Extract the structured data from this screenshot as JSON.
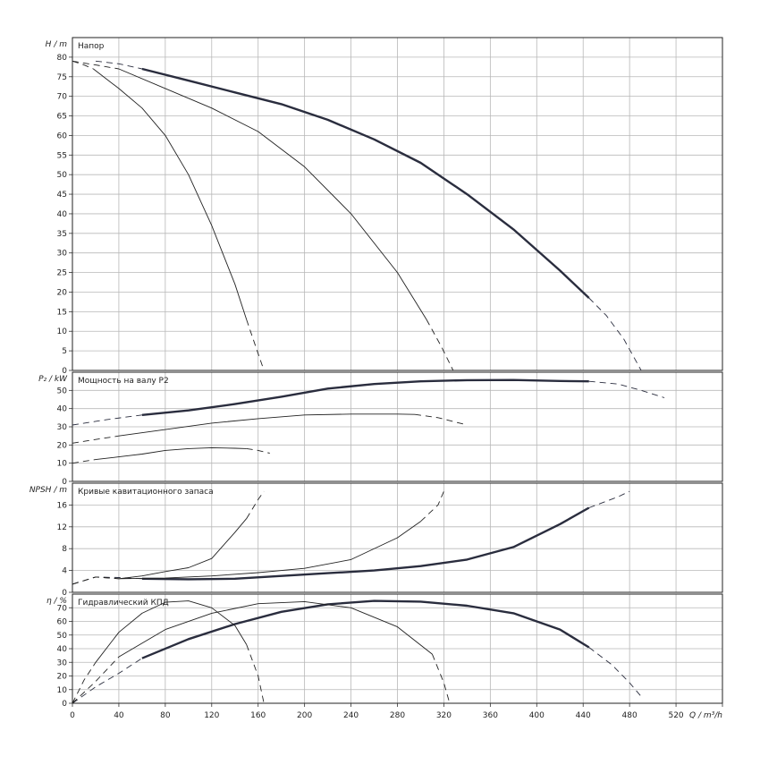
{
  "chart_data": [
    {
      "type": "line",
      "id": "head",
      "title": "Напор",
      "ylabel_symbol": "H",
      "ylabel_unit": "m",
      "ylim": [
        0,
        85
      ],
      "yticks": [
        0,
        5,
        10,
        15,
        20,
        25,
        30,
        35,
        40,
        45,
        50,
        55,
        60,
        65,
        70,
        75,
        80
      ],
      "xlim": [
        0,
        560
      ],
      "grid": true,
      "series": [
        {
          "weight": "thick",
          "solid": [
            [
              60,
              77
            ],
            [
              100,
              74
            ],
            [
              140,
              71
            ],
            [
              180,
              68
            ],
            [
              220,
              64
            ],
            [
              260,
              59
            ],
            [
              300,
              53
            ],
            [
              340,
              45
            ],
            [
              380,
              36
            ],
            [
              420,
              25.5
            ],
            [
              445,
              18.5
            ]
          ],
          "dashed_start": [
            [
              20,
              79
            ],
            [
              40,
              78.3
            ],
            [
              60,
              77
            ]
          ],
          "dashed_end": [
            [
              445,
              18.5
            ],
            [
              460,
              14
            ],
            [
              475,
              8
            ],
            [
              490,
              0
            ]
          ]
        },
        {
          "weight": "thin",
          "solid": [
            [
              40,
              77
            ],
            [
              80,
              72
            ],
            [
              120,
              67
            ],
            [
              160,
              61
            ],
            [
              200,
              52
            ],
            [
              240,
              40
            ],
            [
              280,
              25
            ],
            [
              305,
              13
            ]
          ],
          "dashed_start": [
            [
              0,
              79
            ],
            [
              20,
              78
            ],
            [
              40,
              77
            ]
          ],
          "dashed_end": [
            [
              305,
              13
            ],
            [
              318,
              6
            ],
            [
              328,
              0
            ]
          ]
        },
        {
          "weight": "thin",
          "solid": [
            [
              18,
              77
            ],
            [
              40,
              72
            ],
            [
              60,
              67
            ],
            [
              80,
              60
            ],
            [
              100,
              50
            ],
            [
              120,
              37
            ],
            [
              140,
              22
            ],
            [
              150,
              13
            ]
          ],
          "dashed_start": [
            [
              0,
              79
            ],
            [
              10,
              78
            ],
            [
              18,
              77
            ]
          ],
          "dashed_end": [
            [
              150,
              13
            ],
            [
              158,
              6
            ],
            [
              165,
              0
            ]
          ]
        }
      ]
    },
    {
      "type": "line",
      "id": "power",
      "title": "Мощность на валу P2",
      "ylabel_symbol": "P₂",
      "ylabel_unit": "kW",
      "ylim": [
        0,
        60
      ],
      "yticks": [
        0,
        10,
        20,
        30,
        40,
        50
      ],
      "xlim": [
        0,
        560
      ],
      "grid": true,
      "series": [
        {
          "weight": "thick",
          "solid": [
            [
              60,
              36.5
            ],
            [
              100,
              39
            ],
            [
              140,
              42.5
            ],
            [
              180,
              46.5
            ],
            [
              220,
              51
            ],
            [
              260,
              53.5
            ],
            [
              300,
              55
            ],
            [
              340,
              55.6
            ],
            [
              380,
              55.7
            ],
            [
              420,
              55.2
            ],
            [
              445,
              55
            ]
          ],
          "dashed_start": [
            [
              0,
              31
            ],
            [
              30,
              34
            ],
            [
              60,
              36.5
            ]
          ],
          "dashed_end": [
            [
              445,
              55
            ],
            [
              470,
              53.5
            ],
            [
              490,
              50
            ],
            [
              510,
              46
            ]
          ]
        },
        {
          "weight": "thin",
          "solid": [
            [
              40,
              25
            ],
            [
              80,
              28.5
            ],
            [
              120,
              32
            ],
            [
              160,
              34.5
            ],
            [
              200,
              36.5
            ],
            [
              240,
              37
            ],
            [
              280,
              37
            ],
            [
              295,
              36.8
            ]
          ],
          "dashed_start": [
            [
              0,
              21
            ],
            [
              20,
              23
            ],
            [
              40,
              25
            ]
          ],
          "dashed_end": [
            [
              295,
              36.8
            ],
            [
              315,
              35
            ],
            [
              340,
              31
            ]
          ]
        },
        {
          "weight": "thin",
          "solid": [
            [
              20,
              12
            ],
            [
              40,
              13.5
            ],
            [
              60,
              15
            ],
            [
              80,
              17
            ],
            [
              100,
              18
            ],
            [
              120,
              18.5
            ],
            [
              140,
              18.2
            ],
            [
              150,
              18
            ]
          ],
          "dashed_start": [
            [
              0,
              10
            ],
            [
              10,
              11
            ],
            [
              20,
              12
            ]
          ],
          "dashed_end": [
            [
              150,
              18
            ],
            [
              160,
              17
            ],
            [
              170,
              15.5
            ]
          ]
        }
      ]
    },
    {
      "type": "line",
      "id": "npsh",
      "title": "Кривые кавитационного запаса",
      "ylabel_symbol": "NPSH",
      "ylabel_unit": "m",
      "ylim": [
        0,
        20
      ],
      "yticks": [
        0,
        4,
        8,
        12,
        16
      ],
      "xlim": [
        0,
        560
      ],
      "grid": true,
      "series": [
        {
          "weight": "thick",
          "solid": [
            [
              60,
              2.5
            ],
            [
              100,
              2.4
            ],
            [
              140,
              2.5
            ],
            [
              180,
              3
            ],
            [
              220,
              3.5
            ],
            [
              260,
              4
            ],
            [
              300,
              4.8
            ],
            [
              340,
              6
            ],
            [
              380,
              8.3
            ],
            [
              420,
              12.5
            ],
            [
              445,
              15.5
            ]
          ],
          "dashed_start": [
            [
              0,
              1.5
            ],
            [
              20,
              2.8
            ],
            [
              40,
              2.7
            ],
            [
              60,
              2.5
            ]
          ],
          "dashed_end": [
            [
              445,
              15.5
            ],
            [
              470,
              17.5
            ],
            [
              480,
              18.5
            ]
          ]
        },
        {
          "weight": "thin",
          "solid": [
            [
              40,
              2.5
            ],
            [
              80,
              2.6
            ],
            [
              120,
              3
            ],
            [
              160,
              3.6
            ],
            [
              200,
              4.4
            ],
            [
              240,
              6
            ],
            [
              280,
              10
            ],
            [
              300,
              13
            ]
          ],
          "dashed_start": [
            [
              0,
              1.5
            ],
            [
              20,
              2.8
            ],
            [
              40,
              2.5
            ]
          ],
          "dashed_end": [
            [
              300,
              13
            ],
            [
              315,
              16
            ],
            [
              320,
              18.5
            ]
          ]
        },
        {
          "weight": "thin",
          "solid": [
            [
              40,
              2.5
            ],
            [
              60,
              3
            ],
            [
              80,
              3.8
            ],
            [
              100,
              4.5
            ],
            [
              120,
              6.2
            ],
            [
              140,
              11
            ],
            [
              150,
              13.5
            ]
          ],
          "dashed_start": [
            [
              0,
              1.5
            ],
            [
              20,
              2.8
            ],
            [
              40,
              2.5
            ]
          ],
          "dashed_end": [
            [
              150,
              13.5
            ],
            [
              160,
              17
            ],
            [
              165,
              18.5
            ]
          ]
        }
      ]
    },
    {
      "type": "line",
      "id": "efficiency",
      "title": "Гидравлический КПД",
      "ylabel_symbol": "η",
      "ylabel_unit": "%",
      "ylim": [
        0,
        80
      ],
      "yticks": [
        0,
        10,
        20,
        30,
        40,
        50,
        60,
        70
      ],
      "xlim": [
        0,
        560
      ],
      "xticks": [
        0,
        40,
        80,
        120,
        160,
        200,
        240,
        280,
        320,
        360,
        400,
        440,
        480,
        520
      ],
      "xlabel_symbol": "Q",
      "xlabel_unit": "m³/h",
      "grid": true,
      "series": [
        {
          "weight": "thick",
          "solid": [
            [
              60,
              33
            ],
            [
              100,
              47
            ],
            [
              140,
              58
            ],
            [
              180,
              67
            ],
            [
              220,
              72.5
            ],
            [
              260,
              75
            ],
            [
              300,
              74.5
            ],
            [
              340,
              71.5
            ],
            [
              380,
              66
            ],
            [
              420,
              54
            ],
            [
              445,
              41
            ]
          ],
          "dashed_start": [
            [
              0,
              0
            ],
            [
              20,
              12
            ],
            [
              40,
              22
            ],
            [
              60,
              33
            ]
          ],
          "dashed_end": [
            [
              445,
              41
            ],
            [
              465,
              28
            ],
            [
              480,
              15
            ],
            [
              490,
              5
            ]
          ]
        },
        {
          "weight": "thin",
          "solid": [
            [
              40,
              34
            ],
            [
              80,
              54
            ],
            [
              120,
              66
            ],
            [
              160,
              73
            ],
            [
              200,
              74.5
            ],
            [
              240,
              70
            ],
            [
              280,
              56
            ],
            [
              310,
              36
            ]
          ],
          "dashed_start": [
            [
              0,
              0
            ],
            [
              20,
              16
            ],
            [
              40,
              34
            ]
          ],
          "dashed_end": [
            [
              310,
              36
            ],
            [
              320,
              15
            ],
            [
              325,
              0
            ]
          ]
        },
        {
          "weight": "thin",
          "solid": [
            [
              20,
              30
            ],
            [
              40,
              52
            ],
            [
              60,
              66
            ],
            [
              80,
              74
            ],
            [
              100,
              75
            ],
            [
              120,
              70
            ],
            [
              140,
              57
            ],
            [
              150,
              43
            ]
          ],
          "dashed_start": [
            [
              0,
              0
            ],
            [
              10,
              17
            ],
            [
              20,
              30
            ]
          ],
          "dashed_end": [
            [
              150,
              43
            ],
            [
              160,
              20
            ],
            [
              165,
              0
            ]
          ]
        }
      ]
    }
  ]
}
